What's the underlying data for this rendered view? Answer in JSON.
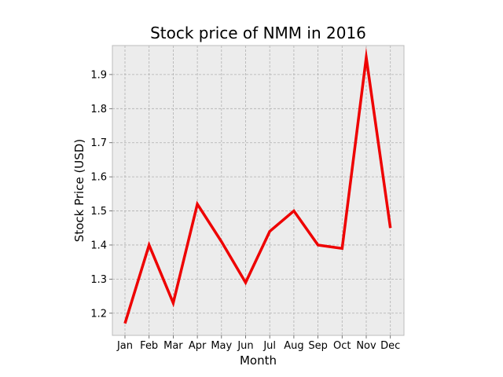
{
  "chart_data": {
    "type": "line",
    "title": "Stock price of NMM in 2016",
    "xlabel": "Month",
    "ylabel": "Stock Price (USD)",
    "categories": [
      "Jan",
      "Feb",
      "Mar",
      "Apr",
      "May",
      "Jun",
      "Jul",
      "Aug",
      "Sep",
      "Oct",
      "Nov",
      "Dec"
    ],
    "series": [
      {
        "values": [
          1.17,
          1.4,
          1.23,
          1.52,
          1.41,
          1.29,
          1.44,
          1.5,
          1.4,
          1.39,
          1.95,
          1.45
        ],
        "color": "#ee0000"
      }
    ],
    "ylim": [
      1.135,
      1.985
    ],
    "yticks": [
      1.2,
      1.3,
      1.4,
      1.5,
      1.6,
      1.7,
      1.8,
      1.9
    ],
    "ytick_labels": [
      "1.2",
      "1.3",
      "1.4",
      "1.5",
      "1.6",
      "1.7",
      "1.8",
      "1.9"
    ],
    "grid": true,
    "legend": "none",
    "background_color": "#ececec"
  }
}
